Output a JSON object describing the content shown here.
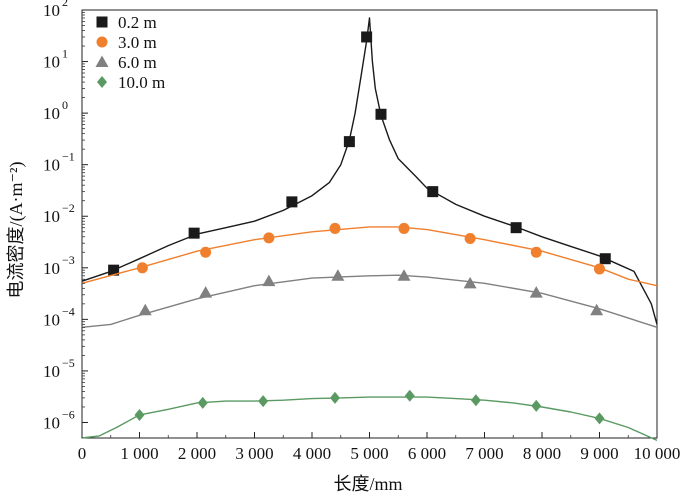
{
  "chart_data": {
    "type": "line",
    "xlabel": "长度/mm",
    "ylabel": "电流密度/(A·m⁻²)",
    "xlim": [
      0,
      10000
    ],
    "ylim": [
      5e-07,
      100
    ],
    "yscale": "log",
    "x_ticks": [
      {
        "value": 0,
        "label": "0"
      },
      {
        "value": 1000,
        "label": "1 000"
      },
      {
        "value": 2000,
        "label": "2 000"
      },
      {
        "value": 3000,
        "label": "3 000"
      },
      {
        "value": 4000,
        "label": "4 000"
      },
      {
        "value": 5000,
        "label": "5 000"
      },
      {
        "value": 6000,
        "label": "6 000"
      },
      {
        "value": 7000,
        "label": "7 000"
      },
      {
        "value": 8000,
        "label": "8 000"
      },
      {
        "value": 9000,
        "label": "9 000"
      },
      {
        "value": 10000,
        "label": "10 000"
      }
    ],
    "y_ticks": [
      {
        "value": 1e-06,
        "base": "10",
        "exp": "−6"
      },
      {
        "value": 1e-05,
        "base": "10",
        "exp": "−5"
      },
      {
        "value": 0.0001,
        "base": "10",
        "exp": "−4"
      },
      {
        "value": 0.001,
        "base": "10",
        "exp": "−3"
      },
      {
        "value": 0.01,
        "base": "10",
        "exp": "−2"
      },
      {
        "value": 0.1,
        "base": "10",
        "exp": "−1"
      },
      {
        "value": 1,
        "base": "10",
        "exp": "0"
      },
      {
        "value": 10,
        "base": "10",
        "exp": "1"
      },
      {
        "value": 100,
        "base": "10",
        "exp": "2"
      }
    ],
    "legend_position": "top-left",
    "series": [
      {
        "name": "0.2 m",
        "marker": "square",
        "color": "#1a1a1a",
        "line": [
          [
            0,
            0.00055
          ],
          [
            500,
            0.00085
          ],
          [
            1000,
            0.0015
          ],
          [
            1500,
            0.0027
          ],
          [
            2000,
            0.0045
          ],
          [
            2500,
            0.006
          ],
          [
            3000,
            0.008
          ],
          [
            3500,
            0.013
          ],
          [
            4000,
            0.025
          ],
          [
            4300,
            0.045
          ],
          [
            4500,
            0.1
          ],
          [
            4650,
            0.3
          ],
          [
            4750,
            1.0
          ],
          [
            4850,
            5
          ],
          [
            4950,
            25
          ],
          [
            5000,
            70
          ],
          [
            5050,
            10
          ],
          [
            5100,
            3
          ],
          [
            5200,
            0.9
          ],
          [
            5350,
            0.3
          ],
          [
            5500,
            0.13
          ],
          [
            5800,
            0.06
          ],
          [
            6000,
            0.035
          ],
          [
            6500,
            0.017
          ],
          [
            7000,
            0.01
          ],
          [
            7500,
            0.0065
          ],
          [
            8000,
            0.004
          ],
          [
            8500,
            0.0026
          ],
          [
            9000,
            0.0017
          ],
          [
            9300,
            0.0012
          ],
          [
            9600,
            0.00085
          ],
          [
            9900,
            0.0002
          ],
          [
            10000,
            8e-05
          ]
        ],
        "markers": [
          [
            550,
            0.0009
          ],
          [
            1950,
            0.0047
          ],
          [
            3650,
            0.019
          ],
          [
            4650,
            0.28
          ],
          [
            4950,
            30
          ],
          [
            5200,
            0.95
          ],
          [
            6100,
            0.03
          ],
          [
            7550,
            0.006
          ],
          [
            9100,
            0.0015
          ]
        ]
      },
      {
        "name": "3.0 m",
        "marker": "circle",
        "color": "#f07f2e",
        "line": [
          [
            0,
            0.0005
          ],
          [
            1000,
            0.001
          ],
          [
            2000,
            0.0021
          ],
          [
            3000,
            0.0035
          ],
          [
            4000,
            0.005
          ],
          [
            5000,
            0.0062
          ],
          [
            5500,
            0.0062
          ],
          [
            6000,
            0.0055
          ],
          [
            7000,
            0.0035
          ],
          [
            8000,
            0.0021
          ],
          [
            9000,
            0.001
          ],
          [
            9500,
            0.0006
          ],
          [
            10000,
            0.00045
          ]
        ],
        "markers": [
          [
            1050,
            0.001
          ],
          [
            2150,
            0.002
          ],
          [
            3250,
            0.0038
          ],
          [
            4400,
            0.0058
          ],
          [
            5600,
            0.0058
          ],
          [
            6750,
            0.0037
          ],
          [
            7900,
            0.002
          ],
          [
            9000,
            0.00095
          ]
        ]
      },
      {
        "name": "6.0 m",
        "marker": "triangle",
        "color": "#808080",
        "line": [
          [
            0,
            7e-05
          ],
          [
            500,
            8e-05
          ],
          [
            1000,
            0.00012
          ],
          [
            2000,
            0.00025
          ],
          [
            3000,
            0.00045
          ],
          [
            4000,
            0.00063
          ],
          [
            5000,
            0.0007
          ],
          [
            5500,
            0.00072
          ],
          [
            6000,
            0.00066
          ],
          [
            7000,
            0.0005
          ],
          [
            8000,
            0.00032
          ],
          [
            9000,
            0.00016
          ],
          [
            10000,
            7e-05
          ]
        ],
        "markers": [
          [
            1100,
            0.00015
          ],
          [
            2150,
            0.00033
          ],
          [
            3250,
            0.00055
          ],
          [
            4450,
            0.0007
          ],
          [
            5600,
            0.0007
          ],
          [
            6750,
            0.0005
          ],
          [
            7900,
            0.00033
          ],
          [
            8950,
            0.00015
          ]
        ]
      },
      {
        "name": "10.0 m",
        "marker": "diamond",
        "color": "#5a9a62",
        "line": [
          [
            0,
            5e-07
          ],
          [
            300,
            5.5e-07
          ],
          [
            600,
            8e-07
          ],
          [
            1000,
            1.4e-06
          ],
          [
            1500,
            1.8e-06
          ],
          [
            2000,
            2.4e-06
          ],
          [
            2500,
            2.6e-06
          ],
          [
            3000,
            2.6e-06
          ],
          [
            3500,
            2.7e-06
          ],
          [
            4000,
            2.9e-06
          ],
          [
            4500,
            3e-06
          ],
          [
            5000,
            3.1e-06
          ],
          [
            5500,
            3.1e-06
          ],
          [
            6000,
            3.1e-06
          ],
          [
            6500,
            2.9e-06
          ],
          [
            7000,
            2.7e-06
          ],
          [
            7500,
            2.4e-06
          ],
          [
            8000,
            2e-06
          ],
          [
            8500,
            1.6e-06
          ],
          [
            9000,
            1.2e-06
          ],
          [
            9500,
            8e-07
          ],
          [
            10000,
            4.5e-07
          ]
        ],
        "markers": [
          [
            1000,
            1.4e-06
          ],
          [
            2100,
            2.4e-06
          ],
          [
            3150,
            2.6e-06
          ],
          [
            4400,
            3e-06
          ],
          [
            5700,
            3.3e-06
          ],
          [
            6850,
            2.7e-06
          ],
          [
            7900,
            2.1e-06
          ],
          [
            9000,
            1.2e-06
          ]
        ]
      }
    ]
  }
}
